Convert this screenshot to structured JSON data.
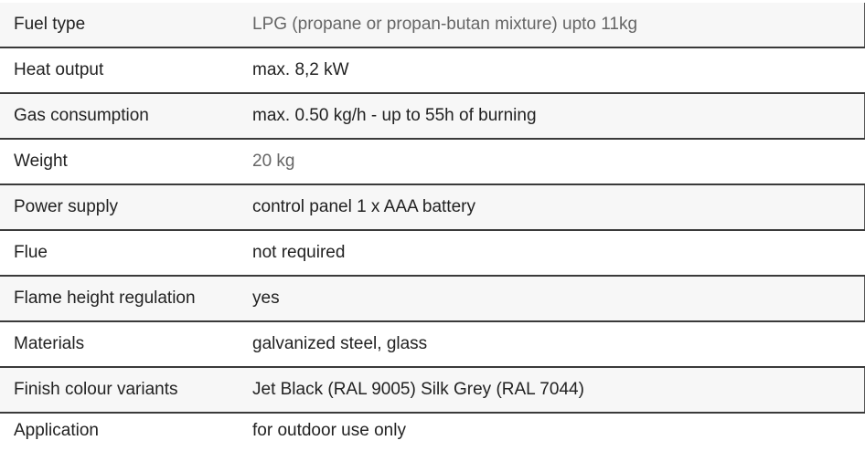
{
  "specs": [
    {
      "label": "Fuel type",
      "value": "LPG (propane or propan-butan mixture) upto 11kg",
      "muted": true
    },
    {
      "label": "Heat output",
      "value": "max. 8,2 kW",
      "muted": false
    },
    {
      "label": "Gas consumption",
      "value": "max. 0.50  kg/h - up to 55h of burning",
      "muted": false
    },
    {
      "label": "Weight",
      "value": "20 kg",
      "muted": true
    },
    {
      "label": "Power supply",
      "value": "control panel 1 x AAA battery",
      "muted": false
    },
    {
      "label": "Flue",
      "value": "not required",
      "muted": false
    },
    {
      "label": "Flame height regulation",
      "value": "yes",
      "muted": false
    },
    {
      "label": "Materials",
      "value": "galvanized steel, glass",
      "muted": false
    },
    {
      "label": "Finish colour variants",
      "value": "Jet Black (RAL 9005) Silk Grey (RAL 7044)",
      "muted": false
    },
    {
      "label": "Application",
      "value": "for outdoor use only",
      "muted": false
    }
  ]
}
